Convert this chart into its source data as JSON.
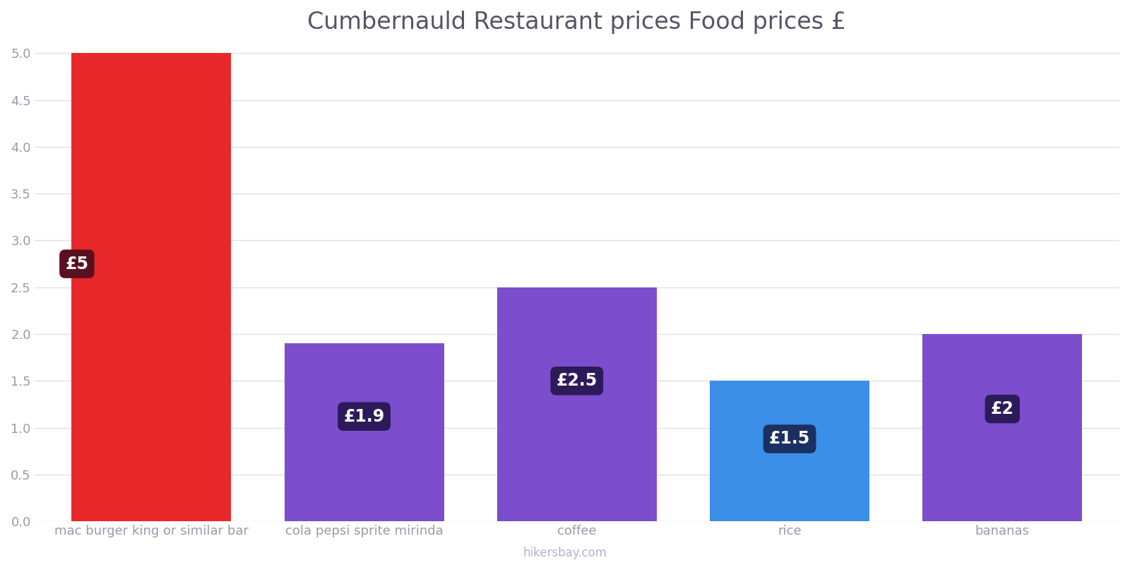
{
  "title": "Cumbernauld Restaurant prices Food prices £",
  "categories": [
    "mac burger king or similar bar",
    "cola pepsi sprite mirinda",
    "coffee",
    "rice",
    "bananas"
  ],
  "values": [
    5.0,
    1.9,
    2.5,
    1.5,
    2.0
  ],
  "bar_colors": [
    "#e8272a",
    "#7c4dcc",
    "#7c4dcc",
    "#3b8fe8",
    "#7c4dcc"
  ],
  "label_texts": [
    "£5",
    "£1.9",
    "£2.5",
    "£1.5",
    "£2"
  ],
  "label_bg_colors": [
    "#5a1020",
    "#2d1a5a",
    "#2d1a5a",
    "#1a3060",
    "#2d1a5a"
  ],
  "ylim": [
    0,
    5.05
  ],
  "yticks": [
    0,
    0.5,
    1.0,
    1.5,
    2.0,
    2.5,
    3.0,
    3.5,
    4.0,
    4.5,
    5.0
  ],
  "label_y_positions": [
    2.75,
    1.12,
    1.5,
    0.88,
    1.2
  ],
  "label_x_offsets": [
    -0.35,
    0.0,
    0.0,
    0.0,
    0.0
  ],
  "watermark": "hikersbay.com",
  "background_color": "#ffffff",
  "grid_color": "#e0e0e8",
  "title_color": "#555566",
  "tick_color": "#999aaa",
  "label_fontsize": 17,
  "title_fontsize": 24,
  "bar_width": 0.75
}
